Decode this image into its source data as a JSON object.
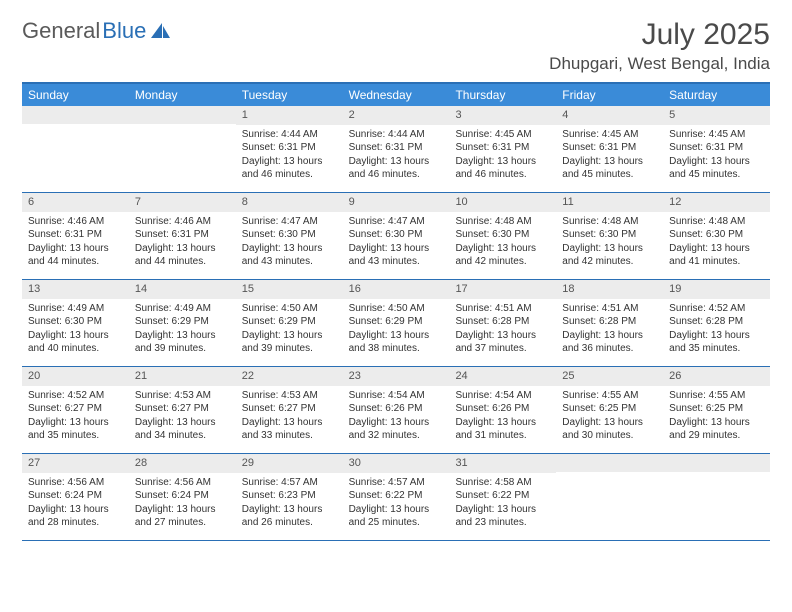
{
  "logo": {
    "text1": "General",
    "text2": "Blue"
  },
  "title": "July 2025",
  "location": "Dhupgari, West Bengal, India",
  "colors": {
    "header_bar": "#3a8bd8",
    "border": "#2a6fb5",
    "daynum_bg": "#ececec",
    "text": "#333333",
    "title_text": "#4a4a4a"
  },
  "weekdays": [
    "Sunday",
    "Monday",
    "Tuesday",
    "Wednesday",
    "Thursday",
    "Friday",
    "Saturday"
  ],
  "weeks": [
    [
      null,
      null,
      {
        "n": "1",
        "sr": "Sunrise: 4:44 AM",
        "ss": "Sunset: 6:31 PM",
        "dl": "Daylight: 13 hours and 46 minutes."
      },
      {
        "n": "2",
        "sr": "Sunrise: 4:44 AM",
        "ss": "Sunset: 6:31 PM",
        "dl": "Daylight: 13 hours and 46 minutes."
      },
      {
        "n": "3",
        "sr": "Sunrise: 4:45 AM",
        "ss": "Sunset: 6:31 PM",
        "dl": "Daylight: 13 hours and 46 minutes."
      },
      {
        "n": "4",
        "sr": "Sunrise: 4:45 AM",
        "ss": "Sunset: 6:31 PM",
        "dl": "Daylight: 13 hours and 45 minutes."
      },
      {
        "n": "5",
        "sr": "Sunrise: 4:45 AM",
        "ss": "Sunset: 6:31 PM",
        "dl": "Daylight: 13 hours and 45 minutes."
      }
    ],
    [
      {
        "n": "6",
        "sr": "Sunrise: 4:46 AM",
        "ss": "Sunset: 6:31 PM",
        "dl": "Daylight: 13 hours and 44 minutes."
      },
      {
        "n": "7",
        "sr": "Sunrise: 4:46 AM",
        "ss": "Sunset: 6:31 PM",
        "dl": "Daylight: 13 hours and 44 minutes."
      },
      {
        "n": "8",
        "sr": "Sunrise: 4:47 AM",
        "ss": "Sunset: 6:30 PM",
        "dl": "Daylight: 13 hours and 43 minutes."
      },
      {
        "n": "9",
        "sr": "Sunrise: 4:47 AM",
        "ss": "Sunset: 6:30 PM",
        "dl": "Daylight: 13 hours and 43 minutes."
      },
      {
        "n": "10",
        "sr": "Sunrise: 4:48 AM",
        "ss": "Sunset: 6:30 PM",
        "dl": "Daylight: 13 hours and 42 minutes."
      },
      {
        "n": "11",
        "sr": "Sunrise: 4:48 AM",
        "ss": "Sunset: 6:30 PM",
        "dl": "Daylight: 13 hours and 42 minutes."
      },
      {
        "n": "12",
        "sr": "Sunrise: 4:48 AM",
        "ss": "Sunset: 6:30 PM",
        "dl": "Daylight: 13 hours and 41 minutes."
      }
    ],
    [
      {
        "n": "13",
        "sr": "Sunrise: 4:49 AM",
        "ss": "Sunset: 6:30 PM",
        "dl": "Daylight: 13 hours and 40 minutes."
      },
      {
        "n": "14",
        "sr": "Sunrise: 4:49 AM",
        "ss": "Sunset: 6:29 PM",
        "dl": "Daylight: 13 hours and 39 minutes."
      },
      {
        "n": "15",
        "sr": "Sunrise: 4:50 AM",
        "ss": "Sunset: 6:29 PM",
        "dl": "Daylight: 13 hours and 39 minutes."
      },
      {
        "n": "16",
        "sr": "Sunrise: 4:50 AM",
        "ss": "Sunset: 6:29 PM",
        "dl": "Daylight: 13 hours and 38 minutes."
      },
      {
        "n": "17",
        "sr": "Sunrise: 4:51 AM",
        "ss": "Sunset: 6:28 PM",
        "dl": "Daylight: 13 hours and 37 minutes."
      },
      {
        "n": "18",
        "sr": "Sunrise: 4:51 AM",
        "ss": "Sunset: 6:28 PM",
        "dl": "Daylight: 13 hours and 36 minutes."
      },
      {
        "n": "19",
        "sr": "Sunrise: 4:52 AM",
        "ss": "Sunset: 6:28 PM",
        "dl": "Daylight: 13 hours and 35 minutes."
      }
    ],
    [
      {
        "n": "20",
        "sr": "Sunrise: 4:52 AM",
        "ss": "Sunset: 6:27 PM",
        "dl": "Daylight: 13 hours and 35 minutes."
      },
      {
        "n": "21",
        "sr": "Sunrise: 4:53 AM",
        "ss": "Sunset: 6:27 PM",
        "dl": "Daylight: 13 hours and 34 minutes."
      },
      {
        "n": "22",
        "sr": "Sunrise: 4:53 AM",
        "ss": "Sunset: 6:27 PM",
        "dl": "Daylight: 13 hours and 33 minutes."
      },
      {
        "n": "23",
        "sr": "Sunrise: 4:54 AM",
        "ss": "Sunset: 6:26 PM",
        "dl": "Daylight: 13 hours and 32 minutes."
      },
      {
        "n": "24",
        "sr": "Sunrise: 4:54 AM",
        "ss": "Sunset: 6:26 PM",
        "dl": "Daylight: 13 hours and 31 minutes."
      },
      {
        "n": "25",
        "sr": "Sunrise: 4:55 AM",
        "ss": "Sunset: 6:25 PM",
        "dl": "Daylight: 13 hours and 30 minutes."
      },
      {
        "n": "26",
        "sr": "Sunrise: 4:55 AM",
        "ss": "Sunset: 6:25 PM",
        "dl": "Daylight: 13 hours and 29 minutes."
      }
    ],
    [
      {
        "n": "27",
        "sr": "Sunrise: 4:56 AM",
        "ss": "Sunset: 6:24 PM",
        "dl": "Daylight: 13 hours and 28 minutes."
      },
      {
        "n": "28",
        "sr": "Sunrise: 4:56 AM",
        "ss": "Sunset: 6:24 PM",
        "dl": "Daylight: 13 hours and 27 minutes."
      },
      {
        "n": "29",
        "sr": "Sunrise: 4:57 AM",
        "ss": "Sunset: 6:23 PM",
        "dl": "Daylight: 13 hours and 26 minutes."
      },
      {
        "n": "30",
        "sr": "Sunrise: 4:57 AM",
        "ss": "Sunset: 6:22 PM",
        "dl": "Daylight: 13 hours and 25 minutes."
      },
      {
        "n": "31",
        "sr": "Sunrise: 4:58 AM",
        "ss": "Sunset: 6:22 PM",
        "dl": "Daylight: 13 hours and 23 minutes."
      },
      null,
      null
    ]
  ]
}
